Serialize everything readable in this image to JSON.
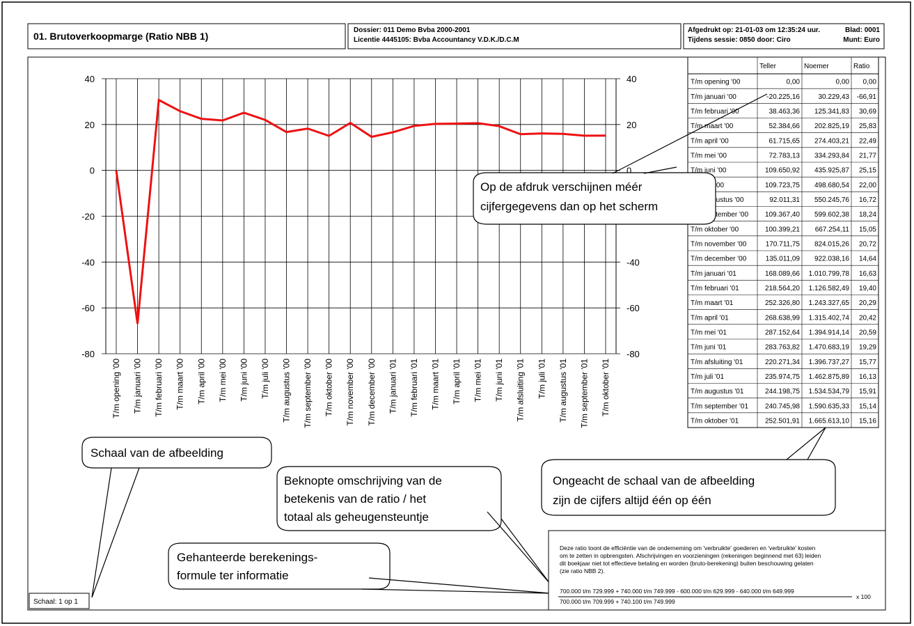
{
  "header": {
    "title": "01. Brutoverkoopmarge (Ratio NBB 1)",
    "dossier": "Dossier: 011 Demo Bvba 2000-2001",
    "licentie": "Licentie 4445105: Bvba Accountancy V.D.K./D.C.M",
    "printed": "Afgedrukt op: 21-01-03 om 12:35:24 uur.",
    "page": "Blad: 0001",
    "session": "Tijdens sessie: 0850 door: Ciro",
    "currency": "Munt: Euro"
  },
  "chart_data": {
    "type": "line",
    "categories": [
      "T/m opening '00",
      "T/m januari '00",
      "T/m februari '00",
      "T/m maart '00",
      "T/m april '00",
      "T/m mei '00",
      "T/m juni '00",
      "T/m juli '00",
      "T/m augustus '00",
      "T/m september '00",
      "T/m oktober '00",
      "T/m november '00",
      "T/m december '00",
      "T/m januari '01",
      "T/m februari '01",
      "T/m maart '01",
      "T/m april '01",
      "T/m mei '01",
      "T/m juni '01",
      "T/m afsluiting '01",
      "T/m juli '01",
      "T/m augustus '01",
      "T/m september '01",
      "T/m oktober '01"
    ],
    "values": [
      0,
      -66.91,
      30.69,
      25.83,
      22.49,
      21.77,
      25.15,
      22.0,
      16.72,
      18.24,
      15.05,
      20.72,
      14.64,
      16.63,
      19.4,
      20.29,
      20.42,
      20.59,
      19.29,
      15.77,
      16.13,
      15.91,
      15.14,
      15.16
    ],
    "color": "#ee1111",
    "ylim": [
      -80,
      40
    ],
    "yticks": [
      -80,
      -60,
      -40,
      -20,
      0,
      20,
      40
    ],
    "grid": true
  },
  "table": {
    "columns": [
      "Teller",
      "Noemer",
      "Ratio"
    ],
    "rows": [
      [
        "0,00",
        "0,00",
        "0,00"
      ],
      [
        "-20.225,16",
        "30.229,43",
        "-66,91"
      ],
      [
        "38.463,36",
        "125.341,83",
        "30,69"
      ],
      [
        "52.384,66",
        "202.825,19",
        "25,83"
      ],
      [
        "61.715,65",
        "274.403,21",
        "22,49"
      ],
      [
        "72.783,13",
        "334.293,84",
        "21,77"
      ],
      [
        "109.650,92",
        "435.925,87",
        "25,15"
      ],
      [
        "109.723,75",
        "498.680,54",
        "22,00"
      ],
      [
        "92.011,31",
        "550.245,76",
        "16,72"
      ],
      [
        "109.367,40",
        "599.602,38",
        "18,24"
      ],
      [
        "100.399,21",
        "667.254,11",
        "15,05"
      ],
      [
        "170.711,75",
        "824.015,26",
        "20,72"
      ],
      [
        "135.011,09",
        "922.038,16",
        "14,64"
      ],
      [
        "168.089,66",
        "1.010.799,78",
        "16,63"
      ],
      [
        "218.564,20",
        "1.126.582,49",
        "19,40"
      ],
      [
        "252.326,80",
        "1.243.327,65",
        "20,29"
      ],
      [
        "268.638,99",
        "1.315.402,74",
        "20,42"
      ],
      [
        "287.152,64",
        "1.394.914,14",
        "20,59"
      ],
      [
        "283.763,82",
        "1.470.683,19",
        "19,29"
      ],
      [
        "220.271,34",
        "1.396.737,27",
        "15,77"
      ],
      [
        "235.974,75",
        "1.462.875,89",
        "16,13"
      ],
      [
        "244.198,75",
        "1.534.534,79",
        "15,91"
      ],
      [
        "240.745,98",
        "1.590.635,33",
        "15,14"
      ],
      [
        "252.501,91",
        "1.665.613,10",
        "15,16"
      ]
    ]
  },
  "callouts": {
    "screen": [
      "Op de afdruk verschijnen méér",
      "cijfergegevens dan op het scherm"
    ],
    "scale": [
      "Schaal van de afbeelding"
    ],
    "exact": [
      "Ongeacht de schaal van de afbeelding",
      "zijn de cijfers altijd één op één"
    ],
    "meaning": [
      "Beknopte omschrijving van de",
      "betekenis van de ratio / het",
      "totaal als geheugensteuntje"
    ],
    "formula": [
      "Gehanteerde berekenings-",
      "formule ter informatie"
    ]
  },
  "description": [
    "Deze ratio toont de efficiëntie van de onderneming om 'verbruikte' goederen en 'verbruikte' kosten",
    "om te zetten in opbrengsten. Afschrijvingen en voorzieningen (rekeningen beginnend met 63) leiden",
    "dit boekjaar niet tot effectieve betaling en worden (bruto-berekening) buiten beschouwing gelaten",
    "(zie ratio NBB 2)."
  ],
  "formula": {
    "numerator": "700.000 t/m 729.999 + 740.000 t/m 749.999 - 600.000 t/m 629.999 - 640.000 t/m 649.999",
    "denominator": "700.000 t/m 709.999 + 740.100 t/m 749.999",
    "factor": "x 100"
  },
  "scale": "Schaal: 1 op 1"
}
